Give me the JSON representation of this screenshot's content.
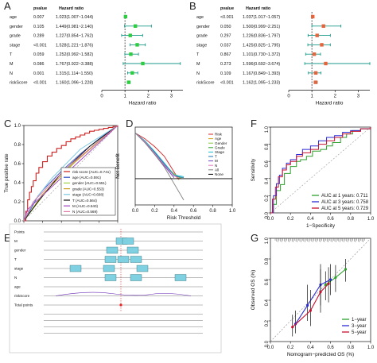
{
  "colors": {
    "forest_A_point": "#2ecc40",
    "forest_B_point": "#e8633a",
    "ci_line": "#1a9a8a",
    "ref_line": "#333333",
    "roc_risk": "#cc1f1f",
    "roc_age": "#2f4fc4",
    "roc_gender": "#9fd04a",
    "roc_grade": "#c9a227",
    "roc_stage": "#7ac7e0",
    "roc_T": "#111111",
    "roc_M": "#a040c0",
    "roc_N": "#e07aa8",
    "dca_colors": [
      "#d62728",
      "#d4a017",
      "#8cc63f",
      "#2ca02c",
      "#17becf",
      "#1f77b4",
      "#6f42c1",
      "#e377c2",
      "#7f7f7f",
      "#000000"
    ],
    "tdroc_1": "#2ca02c",
    "tdroc_3": "#2b2bd6",
    "tdroc_5": "#c8102e",
    "calib_1": "#2ca02c",
    "calib_3": "#2b2bd6",
    "calib_5": "#c8102e",
    "nomo_box": "#7fd0e0"
  },
  "chart_data": [
    {
      "panel": "A",
      "type": "forest",
      "columns": [
        "pvalue",
        "Hazard ratio"
      ],
      "rows": [
        {
          "label": "age",
          "pvalue": "0.007",
          "hr_text": "1.023(1.007~1.044)",
          "hr": 1.023,
          "lo": 1.007,
          "hi": 1.044
        },
        {
          "label": "gender",
          "pvalue": "0.105",
          "hr_text": "1.449(0.981~2.140)",
          "hr": 1.449,
          "lo": 0.981,
          "hi": 2.14
        },
        {
          "label": "grade",
          "pvalue": "0.289",
          "hr_text": "1.227(0.854~1.762)",
          "hr": 1.227,
          "lo": 0.854,
          "hi": 1.762
        },
        {
          "label": "stage",
          "pvalue": "<0.001",
          "hr_text": "1.528(1.221~1.876)",
          "hr": 1.528,
          "lo": 1.221,
          "hi": 1.876
        },
        {
          "label": "T",
          "pvalue": "0.059",
          "hr_text": "1.252(0.992~1.582)",
          "hr": 1.252,
          "lo": 0.992,
          "hi": 1.582
        },
        {
          "label": "M",
          "pvalue": "0.086",
          "hr_text": "1.767(0.922~3.388)",
          "hr": 1.767,
          "lo": 0.922,
          "hi": 3.388
        },
        {
          "label": "N",
          "pvalue": "0.001",
          "hr_text": "1.315(1.114~1.550)",
          "hr": 1.315,
          "lo": 1.114,
          "hi": 1.55
        },
        {
          "label": "riskScore",
          "pvalue": "<0.001",
          "hr_text": "1.160(1.096~1.228)",
          "hr": 1.16,
          "lo": 1.096,
          "hi": 1.228
        }
      ],
      "xlabel": "Hazard ratio",
      "xlim": [
        0,
        3.5
      ],
      "xticks": [
        "0",
        "1",
        "2",
        "3"
      ]
    },
    {
      "panel": "B",
      "type": "forest",
      "columns": [
        "pvalue",
        "Hazard ratio"
      ],
      "rows": [
        {
          "label": "age",
          "pvalue": "<0.001",
          "hr_text": "1.037(1.017~1.057)",
          "hr": 1.037,
          "lo": 1.017,
          "hi": 1.057
        },
        {
          "label": "gender",
          "pvalue": "0.050",
          "hr_text": "1.500(0.999~2.251)",
          "hr": 1.5,
          "lo": 0.999,
          "hi": 2.251
        },
        {
          "label": "grade",
          "pvalue": "0.297",
          "hr_text": "1.226(0.836~1.797)",
          "hr": 1.226,
          "lo": 0.836,
          "hi": 1.797
        },
        {
          "label": "stage",
          "pvalue": "0.037",
          "hr_text": "1.425(0.825~1.795)",
          "hr": 1.425,
          "lo": 0.825,
          "hi": 1.795
        },
        {
          "label": "T",
          "pvalue": "0.867",
          "hr_text": "1.101(0.730~1.372)",
          "hr": 1.101,
          "lo": 0.73,
          "hi": 1.372
        },
        {
          "label": "M",
          "pvalue": "0.273",
          "hr_text": "1.596(0.692~3.674)",
          "hr": 1.596,
          "lo": 0.692,
          "hi": 3.674
        },
        {
          "label": "N",
          "pvalue": "0.109",
          "hr_text": "1.167(0.849~1.393)",
          "hr": 1.167,
          "lo": 0.849,
          "hi": 1.393
        },
        {
          "label": "riskScore",
          "pvalue": "<0.001",
          "hr_text": "1.162(1.095~1.233)",
          "hr": 1.162,
          "lo": 1.095,
          "hi": 1.233
        }
      ],
      "xlabel": "Hazard ratio",
      "xlim": [
        0,
        3.5
      ],
      "xticks": [
        "0",
        "1",
        "2",
        "3"
      ]
    },
    {
      "panel": "C",
      "type": "line",
      "xlabel": "False positive rate",
      "ylabel": "True positive rate",
      "xlim": [
        0,
        1
      ],
      "ylim": [
        0,
        1
      ],
      "xticks": [
        "0.0",
        "0.2",
        "0.4",
        "0.6",
        "0.8",
        "1.0"
      ],
      "yticks": [
        "0.0",
        "0.2",
        "0.4",
        "0.6",
        "0.8",
        "1.0"
      ],
      "series": [
        {
          "name": "risk score (AUC=0.741)",
          "x": [
            0,
            0.02,
            0.04,
            0.06,
            0.08,
            0.1,
            0.13,
            0.16,
            0.2,
            0.25,
            0.3,
            0.35,
            0.4,
            0.45,
            0.5,
            0.55,
            0.6,
            0.65,
            0.7,
            0.75,
            0.8,
            0.85,
            0.9,
            0.95,
            1
          ],
          "y": [
            0,
            0.1,
            0.22,
            0.3,
            0.36,
            0.42,
            0.5,
            0.56,
            0.62,
            0.68,
            0.72,
            0.76,
            0.79,
            0.83,
            0.86,
            0.88,
            0.9,
            0.92,
            0.94,
            0.95,
            0.96,
            0.97,
            0.98,
            0.99,
            1
          ]
        },
        {
          "name": "age (AUC=0.591)",
          "x": [
            0,
            0.05,
            0.1,
            0.15,
            0.2,
            0.3,
            0.4,
            0.5,
            0.6,
            0.7,
            0.8,
            0.9,
            1
          ],
          "y": [
            0,
            0.08,
            0.17,
            0.26,
            0.32,
            0.42,
            0.52,
            0.61,
            0.7,
            0.78,
            0.86,
            0.93,
            1
          ]
        },
        {
          "name": "gender (AUC=0.551)",
          "x": [
            0,
            0.35,
            0.75,
            1
          ],
          "y": [
            0,
            0.45,
            0.8,
            1
          ]
        },
        {
          "name": "grade (AUC=0.553)",
          "x": [
            0,
            0.2,
            0.55,
            1
          ],
          "y": [
            0,
            0.28,
            0.62,
            1
          ]
        },
        {
          "name": "stage (AUC=0.608)",
          "x": [
            0,
            0.12,
            0.3,
            0.6,
            1
          ],
          "y": [
            0,
            0.22,
            0.45,
            0.75,
            1
          ]
        },
        {
          "name": "T (AUC=0.564)",
          "x": [
            0,
            0.15,
            0.4,
            0.7,
            1
          ],
          "y": [
            0,
            0.2,
            0.5,
            0.78,
            1
          ]
        },
        {
          "name": "M (AUC=0.540)",
          "x": [
            0,
            0.04,
            1
          ],
          "y": [
            0,
            0.12,
            1
          ]
        },
        {
          "name": "N (AUC=0.569)",
          "x": [
            0,
            0.1,
            0.45,
            1
          ],
          "y": [
            0,
            0.2,
            0.55,
            1
          ]
        }
      ]
    },
    {
      "panel": "D",
      "type": "line",
      "xlabel": "Risk Threshold",
      "ylabel": "Net Benefit",
      "xlim": [
        0,
        1
      ],
      "ylim": [
        -0.6,
        0.2
      ],
      "xticks": [
        "0.0",
        "0.2",
        "0.4",
        "0.6",
        "0.8",
        "1.0"
      ],
      "yticks": [],
      "legend": [
        "Risk",
        "Age",
        "Gender",
        "Grade",
        "Stage",
        "T",
        "M",
        "N",
        "All",
        "None"
      ],
      "series": [
        {
          "name": "Risk",
          "x": [
            0,
            0.1,
            0.2,
            0.3,
            0.35,
            0.4,
            0.45
          ],
          "y": [
            0.14,
            0.08,
            0.0,
            -0.1,
            -0.18,
            -0.26,
            -0.34
          ]
        },
        {
          "name": "Age",
          "x": [
            0,
            0.1,
            0.2,
            0.3,
            0.38,
            0.45
          ],
          "y": [
            0.14,
            0.05,
            -0.06,
            -0.18,
            -0.27,
            -0.34
          ]
        },
        {
          "name": "Gender",
          "x": [
            0,
            0.1,
            0.2,
            0.3,
            0.4,
            0.47
          ],
          "y": [
            0.14,
            0.05,
            -0.06,
            -0.18,
            -0.28,
            -0.33
          ]
        },
        {
          "name": "Grade",
          "x": [
            0,
            0.1,
            0.2,
            0.3,
            0.4,
            0.48
          ],
          "y": [
            0.14,
            0.05,
            -0.06,
            -0.19,
            -0.3,
            -0.32
          ]
        },
        {
          "name": "Stage",
          "x": [
            0,
            0.1,
            0.2,
            0.3,
            0.4,
            0.5
          ],
          "y": [
            0.14,
            0.06,
            -0.05,
            -0.17,
            -0.29,
            -0.31
          ]
        },
        {
          "name": "T",
          "x": [
            0,
            0.1,
            0.2,
            0.3,
            0.4,
            0.5
          ],
          "y": [
            0.14,
            0.05,
            -0.06,
            -0.18,
            -0.3,
            -0.32
          ]
        },
        {
          "name": "M",
          "x": [
            0,
            0.1,
            0.2,
            0.3,
            0.4
          ],
          "y": [
            0.14,
            0.04,
            -0.08,
            -0.2,
            -0.32
          ]
        },
        {
          "name": "N",
          "x": [
            0,
            0.1,
            0.2,
            0.3,
            0.4,
            0.46
          ],
          "y": [
            0.14,
            0.05,
            -0.07,
            -0.19,
            -0.3,
            -0.33
          ]
        },
        {
          "name": "All",
          "x": [
            0,
            0.1,
            0.2,
            0.3,
            0.4,
            0.5
          ],
          "y": [
            0.14,
            0.04,
            -0.08,
            -0.21,
            -0.38,
            -0.55
          ]
        },
        {
          "name": "None",
          "x": [
            0,
            1
          ],
          "y": [
            -0.33,
            -0.33
          ]
        }
      ]
    },
    {
      "panel": "F",
      "type": "line",
      "xlabel": "1−Specificity",
      "ylabel": "Sensitivity",
      "xlim": [
        0,
        1
      ],
      "ylim": [
        0,
        1
      ],
      "xticks": [
        "0.0",
        "0.2",
        "0.4",
        "0.6",
        "0.8",
        "1.0"
      ],
      "yticks": [
        "0.0",
        "0.2",
        "0.4",
        "0.6",
        "0.8",
        "1.0"
      ],
      "series": [
        {
          "name": "AUC at 1 years: 0.711",
          "x": [
            0,
            0.03,
            0.06,
            0.1,
            0.14,
            0.2,
            0.26,
            0.3,
            0.36,
            0.42,
            0.5,
            0.56,
            0.62,
            0.7,
            0.76,
            0.82,
            0.9,
            1
          ],
          "y": [
            0,
            0.1,
            0.26,
            0.33,
            0.46,
            0.54,
            0.6,
            0.62,
            0.66,
            0.72,
            0.74,
            0.78,
            0.82,
            0.88,
            0.92,
            0.96,
            0.98,
            1
          ]
        },
        {
          "name": "AUC at 3 years: 0.758",
          "x": [
            0,
            0.03,
            0.06,
            0.09,
            0.12,
            0.16,
            0.2,
            0.26,
            0.32,
            0.4,
            0.48,
            0.56,
            0.64,
            0.72,
            0.8,
            0.9,
            1
          ],
          "y": [
            0,
            0.2,
            0.34,
            0.44,
            0.52,
            0.58,
            0.62,
            0.68,
            0.74,
            0.78,
            0.84,
            0.88,
            0.9,
            0.94,
            0.96,
            0.98,
            1
          ]
        },
        {
          "name": "AUC at 5 years: 0.729",
          "x": [
            0,
            0.02,
            0.05,
            0.08,
            0.12,
            0.16,
            0.2,
            0.26,
            0.32,
            0.4,
            0.48,
            0.56,
            0.64,
            0.72,
            0.8,
            0.9,
            1
          ],
          "y": [
            0,
            0.16,
            0.3,
            0.42,
            0.5,
            0.56,
            0.6,
            0.66,
            0.7,
            0.74,
            0.8,
            0.84,
            0.88,
            0.92,
            0.95,
            0.98,
            1
          ]
        }
      ]
    },
    {
      "panel": "E",
      "type": "nomogram",
      "rows": [
        "Points",
        "M",
        "gender",
        "T",
        "stage",
        "N",
        "age",
        "riskScore",
        "Total points"
      ],
      "boxes": [
        {
          "row": 1,
          "pos": 0.49
        },
        {
          "row": 1,
          "pos": 0.53
        },
        {
          "row": 2,
          "pos": 0.43
        },
        {
          "row": 2,
          "pos": 0.56
        },
        {
          "row": 3,
          "pos": 0.42
        },
        {
          "row": 3,
          "pos": 0.5
        },
        {
          "row": 3,
          "pos": 0.58
        },
        {
          "row": 4,
          "pos": 0.2
        },
        {
          "row": 4,
          "pos": 0.41
        },
        {
          "row": 4,
          "pos": 0.62
        },
        {
          "row": 5,
          "pos": 0.42
        },
        {
          "row": 5,
          "pos": 0.58
        },
        {
          "row": 5,
          "pos": 0.86
        }
      ]
    },
    {
      "panel": "G",
      "type": "line",
      "xlabel": "Nomogram−predicted OS (%)",
      "ylabel": "Observed OS (%)",
      "xlim": [
        0,
        1
      ],
      "ylim": [
        0,
        1
      ],
      "xticks": [
        "0.0",
        "0.2",
        "0.4",
        "0.6",
        "0.8",
        "1.0"
      ],
      "yticks": [
        "0.0",
        "0.2",
        "0.4",
        "0.6",
        "0.8",
        "1.0"
      ],
      "legend": [
        "1−year",
        "3−year",
        "5−year"
      ],
      "series": [
        {
          "name": "1−year",
          "x": [
            0.55,
            0.65,
            0.75
          ],
          "y": [
            0.55,
            0.62,
            0.7
          ],
          "lo": [
            0.4,
            0.48,
            0.58
          ],
          "hi": [
            0.68,
            0.74,
            0.8
          ]
        },
        {
          "name": "3−year",
          "x": [
            0.25,
            0.37,
            0.5,
            0.6
          ],
          "y": [
            0.17,
            0.35,
            0.55,
            0.6
          ],
          "lo": [
            0.08,
            0.2,
            0.35,
            0.45
          ],
          "hi": [
            0.3,
            0.55,
            0.75,
            0.75
          ]
        },
        {
          "name": "5−year",
          "x": [
            0.22,
            0.4,
            0.5,
            0.58
          ],
          "y": [
            0.14,
            0.3,
            0.48,
            0.56
          ],
          "lo": [
            0.05,
            0.15,
            0.28,
            0.38
          ],
          "hi": [
            0.26,
            0.5,
            0.7,
            0.72
          ]
        }
      ]
    }
  ]
}
